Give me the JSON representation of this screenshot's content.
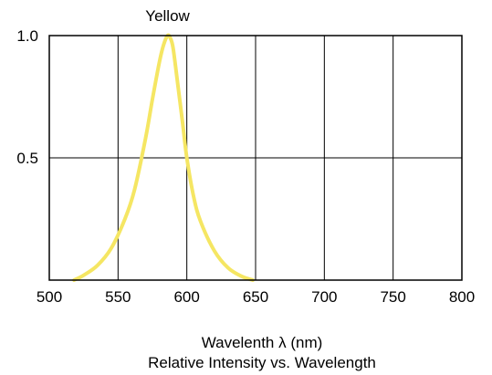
{
  "chart_data": {
    "type": "line",
    "title": "Relative Intensity vs. Wavelength",
    "xlabel": "Wavelenth λ (nm)",
    "ylabel": "",
    "xlim": [
      500,
      800
    ],
    "ylim": [
      0,
      1.0
    ],
    "x_ticks": [
      500,
      550,
      600,
      650,
      700,
      750,
      800
    ],
    "x_tick_labels": [
      "500",
      "550",
      "600",
      "650",
      "700",
      "750",
      "800"
    ],
    "y_ticks": [
      0.5,
      1.0
    ],
    "y_tick_labels": [
      "0.5",
      "1.0"
    ],
    "grid": true,
    "series": [
      {
        "name": "Yellow",
        "color": "#f5e663",
        "x": [
          518,
          525,
          535,
          545,
          555,
          562,
          570,
          575,
          580,
          583,
          586,
          588,
          590,
          593,
          597,
          600,
          605,
          610,
          620,
          630,
          640,
          648
        ],
        "y": [
          0.0,
          0.02,
          0.06,
          0.13,
          0.25,
          0.37,
          0.58,
          0.74,
          0.89,
          0.96,
          1.0,
          0.99,
          0.95,
          0.82,
          0.64,
          0.5,
          0.34,
          0.24,
          0.12,
          0.05,
          0.015,
          0.0
        ]
      }
    ]
  }
}
